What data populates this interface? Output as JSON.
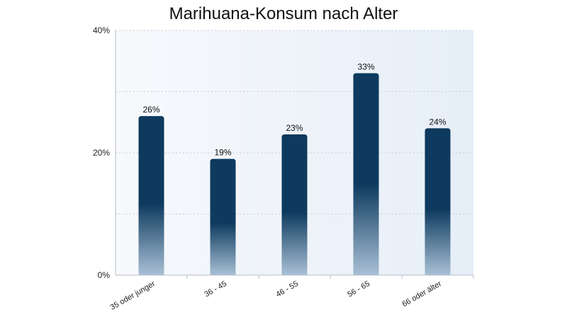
{
  "chart_data": {
    "type": "bar",
    "title": "Marihuana-Konsum nach Alter",
    "xlabel": "",
    "ylabel": "",
    "categories": [
      "35 oder junger",
      "36 - 45",
      "46 - 55",
      "56 - 65",
      "66 oder älter"
    ],
    "values": [
      26,
      19,
      23,
      33,
      24
    ],
    "data_labels": [
      "26%",
      "19%",
      "23%",
      "33%",
      "24%"
    ],
    "ylim": [
      0,
      40
    ],
    "y_ticks": [
      0,
      20,
      40
    ],
    "y_tick_labels": [
      "0%",
      "20%",
      "40%"
    ],
    "grid": true,
    "legend": "none",
    "colors": {
      "bar_top": "#0d3a5e",
      "bar_bottom": "#a9c0d6",
      "plot_bg_left": "#f7f9fc",
      "plot_bg_right": "#e6eef8",
      "grid": "#c6ccd4"
    }
  }
}
